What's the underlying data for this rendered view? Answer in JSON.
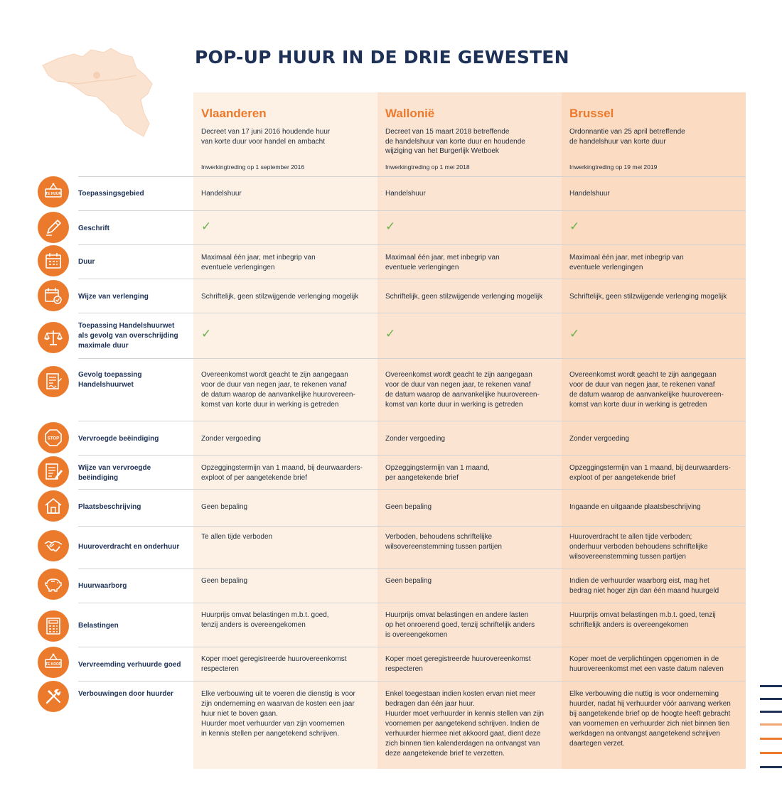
{
  "title": "POP-UP HUUR IN DE DRIE GEWESTEN",
  "colors": {
    "navy": "#1d3157",
    "orange": "#ec7a2d",
    "check_green": "#6ab04c",
    "map_fill": "#fbe3d1"
  },
  "columns": [
    {
      "name": "Vlaanderen",
      "decree": "Decreet van 17 juni 2016 houdende huur\nvan korte duur voor handel en ambacht",
      "date": "Inwerkingtreding op 1 september 2016"
    },
    {
      "name": "Wallonië",
      "decree": "Decreet van 15 maart 2018 betreffende\nde handelshuur van korte duur en houdende\nwijziging van het Burgerlijk Wetboek",
      "date": "Inwerkingtreding op 1 mei 2018"
    },
    {
      "name": "Brussel",
      "decree": "Ordonnantie van 25 april betreffende\nde handelshuur van korte duur",
      "date": "Inwerkingtreding op 19 mei 2019"
    }
  ],
  "rows": [
    {
      "icon": "te-huur-sign-icon",
      "icon_text": "TE HUUR",
      "label": "Toepassingsgebied",
      "values": [
        "Handelshuur",
        "Handelshuur",
        "Handelshuur"
      ]
    },
    {
      "icon": "pen-icon",
      "label": "Geschrift",
      "values": [
        "✓",
        "✓",
        "✓"
      ]
    },
    {
      "icon": "calendar-icon",
      "label": "Duur",
      "values": [
        "Maximaal één jaar, met inbegrip van\neventuele verlengingen",
        "Maximaal één jaar, met inbegrip van\neventuele verlengingen",
        "Maximaal één jaar, met inbegrip van\neventuele verlengingen"
      ]
    },
    {
      "icon": "calendar-check-icon",
      "label": "Wijze van verlenging",
      "values": [
        "Schriftelijk, geen stilzwijgende verlenging mogelijk",
        "Schriftelijk, geen stilzwijgende verlenging mogelijk",
        "Schriftelijk, geen stilzwijgende verlenging mogelijk"
      ]
    },
    {
      "icon": "scales-icon",
      "label": "Toepassing Handelshuurwet\nals gevolg van overschrijding\nmaximale duur",
      "values": [
        "✓",
        "✓",
        "✓"
      ]
    },
    {
      "icon": "contract-signature-icon",
      "label": "Gevolg toepassing\nHandelshuurwet",
      "values": [
        "Overeenkomst wordt geacht te zijn aangegaan\nvoor de duur van negen jaar, te rekenen vanaf\nde datum waarop de aanvankelijke huurovereen-\nkomst van korte duur in werking is getreden",
        "Overeenkomst wordt geacht te zijn aangegaan\nvoor de duur van negen jaar, te rekenen vanaf\nde datum waarop de aanvankelijke huurovereen-\nkomst van korte duur in werking is getreden",
        "Overeenkomst wordt geacht te zijn aangegaan\nvoor de duur van negen jaar, te rekenen vanaf\nde datum waarop de aanvankelijke huurovereen-\nkomst van korte duur in werking is getreden"
      ]
    },
    {
      "icon": "stop-sign-icon",
      "icon_text": "STOP",
      "label": "Vervroegde beëindiging",
      "values": [
        "Zonder vergoeding",
        "Zonder vergoeding",
        "Zonder vergoeding"
      ]
    },
    {
      "icon": "document-pen-icon",
      "label": "Wijze van vervroegde\nbeëindiging",
      "values": [
        "Opzeggingstermijn van 1 maand, bij deurwaarders-\nexploot of per aangetekende brief",
        "Opzeggingstermijn van 1 maand,\nper aangetekende brief",
        "Opzeggingstermijn van 1 maand, bij deurwaarders-\nexploot of per aangetekende brief"
      ]
    },
    {
      "icon": "house-icon",
      "label": "Plaatsbeschrijving",
      "values": [
        "Geen bepaling",
        "Geen bepaling",
        "Ingaande en uitgaande plaatsbeschrijving"
      ]
    },
    {
      "icon": "handshake-icon",
      "label": "Huuroverdracht en onderhuur",
      "values": [
        "Te allen tijde verboden",
        "Verboden, behoudens schriftelijke\nwilsovereenstemming tussen partijen",
        "Huuroverdracht te allen tijde verboden;\nonderhuur verboden behoudens schriftelijke\nwilsovereenstemming tussen partijen"
      ]
    },
    {
      "icon": "piggy-bank-icon",
      "label": "Huurwaarborg",
      "values": [
        "Geen bepaling",
        "Geen bepaling",
        "Indien de verhuurder waarborg eist, mag het\nbedrag niet hoger zijn dan één maand huurgeld"
      ]
    },
    {
      "icon": "tax-calculator-icon",
      "label": "Belastingen",
      "values": [
        "Huurprijs omvat belastingen m.b.t. goed,\ntenzij anders is overeengekomen",
        "Huurprijs omvat belastingen en andere lasten\nop het onroerend goed, tenzij schriftelijk anders\nis overeengekomen",
        "Huurprijs omvat belastingen m.b.t. goed, tenzij\nschriftelijk anders is overeengekomen"
      ]
    },
    {
      "icon": "te-koop-sign-icon",
      "icon_text": "TE KOOP",
      "label": "Vervreemding verhuurde goed",
      "values": [
        "Koper moet geregistreerde huurovereenkomst\nrespecteren",
        "Koper moet geregistreerde huurovereenkomst\nrespecteren",
        "Koper moet de verplichtingen opgenomen in de\nhuurovereenkomst met een vaste datum naleven"
      ]
    },
    {
      "icon": "tools-icon",
      "label": "Verbouwingen door huurder",
      "values": [
        "Elke verbouwing uit te voeren die dienstig is voor\nzijn onderneming en waarvan de kosten een jaar\nhuur niet te boven gaan.\nHuurder moet verhuurder van zijn voornemen\nin kennis stellen per aangetekend schrijven.",
        "Enkel toegestaan indien kosten ervan niet meer\nbedragen dan één jaar huur.\nHuurder moet verhuurder in kennis stellen van zijn\nvoornemen per aangetekend schrijven. Indien de\nverhuurder hiermee niet akkoord gaat, dient deze\nzich binnen tien kalenderdagen na ontvangst van\ndeze aangetekende brief te verzetten.",
        "Elke verbouwing die nuttig is voor onderneming\nhuurder, nadat hij verhuurder vóór aanvang werken\nbij aangetekende brief op de hoogte heeft gebracht\nvan voornemen en verhuurder zich niet binnen tien\nwerkdagen na ontvangst aangetekend schrijven\ndaartegen verzet."
      ]
    }
  ],
  "decoration_stripes": [
    "#1d3157",
    "#1d3157",
    "#1d3157",
    "#f2a675",
    "#ec7a2d",
    "#ec7a2d",
    "#1d3157"
  ]
}
